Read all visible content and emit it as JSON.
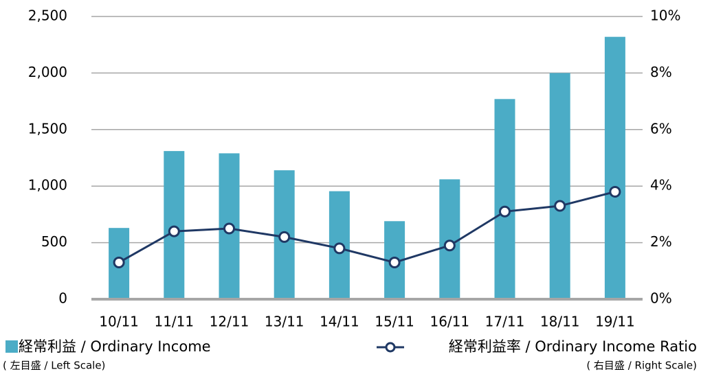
{
  "chart_data": {
    "type": "bar_line",
    "categories": [
      "10/11",
      "11/11",
      "12/11",
      "13/11",
      "14/11",
      "15/11",
      "16/11",
      "17/11",
      "18/11",
      "19/11"
    ],
    "series": [
      {
        "name": "経常利益 / Ordinary Income",
        "scale_note": "( 左目盛 / Left Scale)",
        "type": "bar",
        "color": "#4bacc6",
        "values": [
          630,
          1310,
          1290,
          1140,
          955,
          690,
          1060,
          1770,
          2000,
          2320
        ]
      },
      {
        "name": "経常利益率 / Ordinary Income Ratio",
        "scale_note": "( 右目盛 / Right Scale)",
        "type": "line",
        "axis": "y2",
        "color": "#1f3864",
        "values": [
          1.3,
          2.4,
          2.5,
          2.2,
          1.8,
          1.3,
          1.9,
          3.1,
          3.3,
          3.8
        ]
      }
    ],
    "ylim": [
      0,
      2500
    ],
    "yticks": [
      0,
      500,
      {
        "value": 1000,
        "label": "1,000"
      },
      {
        "value": 1500,
        "label": "1,500"
      },
      {
        "value": 2000,
        "label": "2,000"
      },
      {
        "value": 2500,
        "label": "2,500"
      }
    ],
    "y2lim": [
      0,
      10
    ],
    "y2ticks": [
      {
        "value": 0,
        "label": "0%"
      },
      {
        "value": 2,
        "label": "2%"
      },
      {
        "value": 4,
        "label": "4%"
      },
      {
        "value": 6,
        "label": "6%"
      },
      {
        "value": 8,
        "label": "8%"
      },
      {
        "value": 10,
        "label": "10%"
      }
    ],
    "grid": true
  }
}
